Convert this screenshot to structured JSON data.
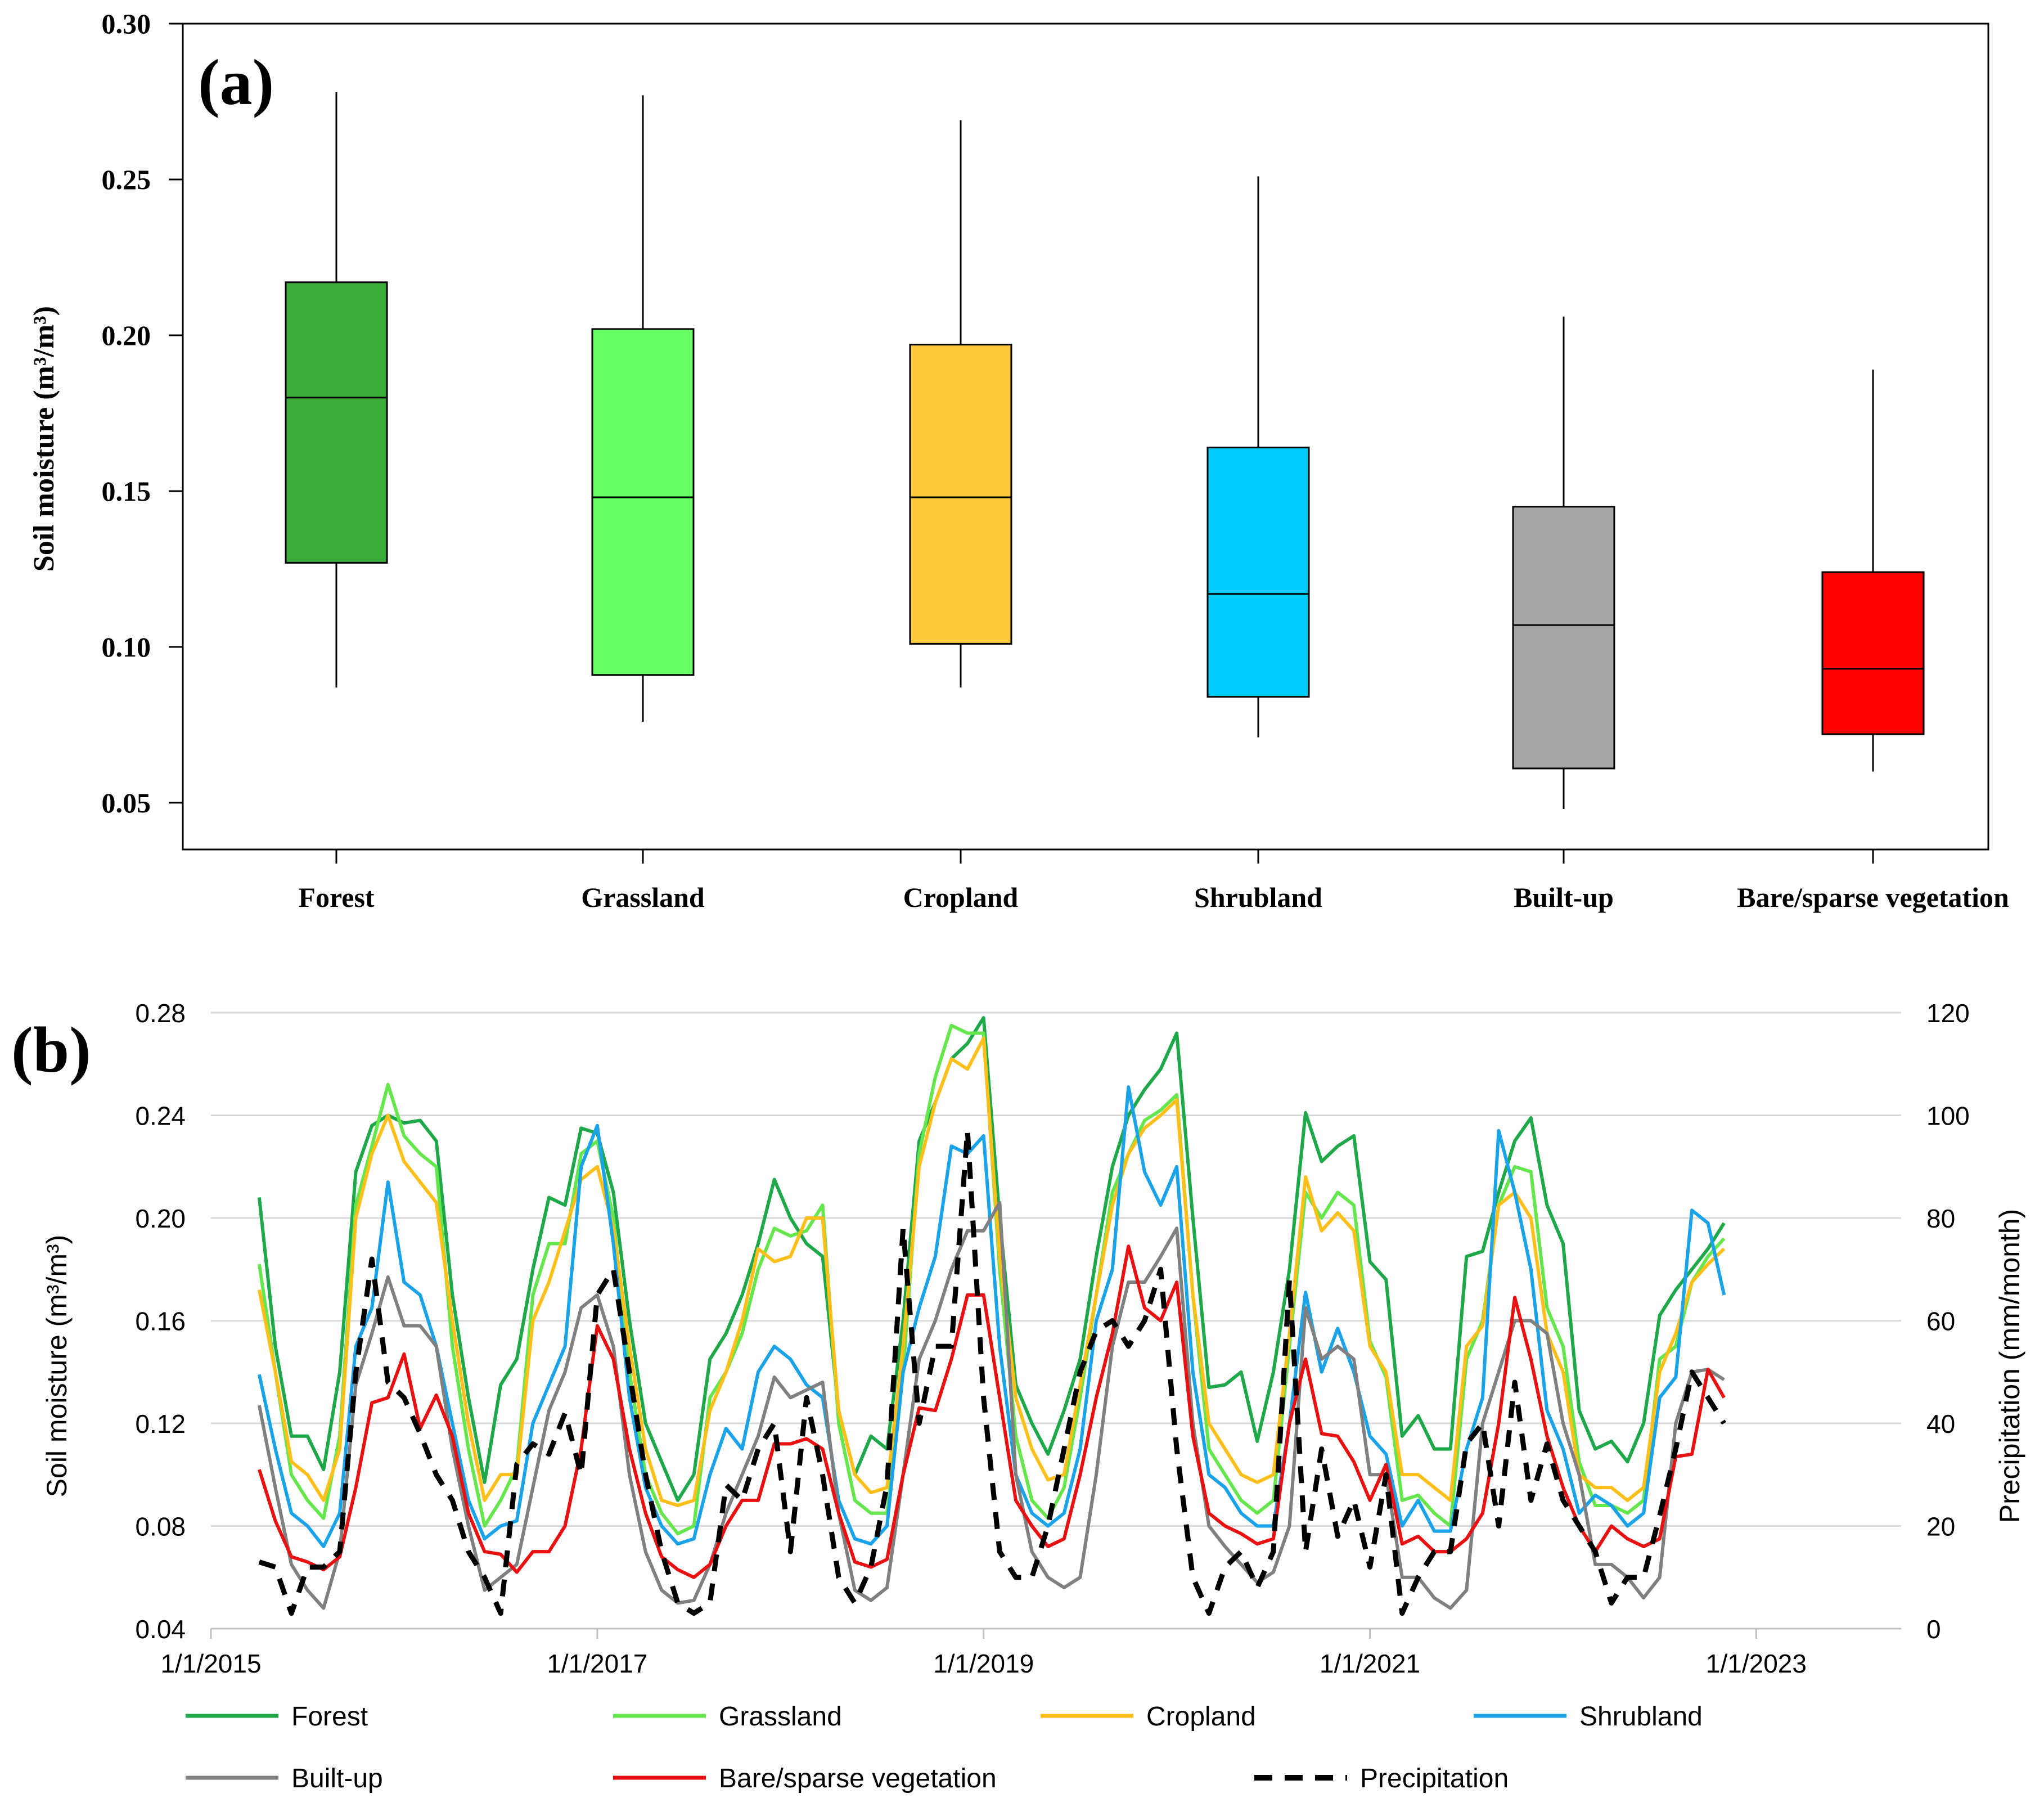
{
  "panel_a": {
    "label": "(a)",
    "chart_data": {
      "type": "box",
      "title": "",
      "ylabel": "Soil moisture (m³/m³)",
      "ylim": [
        0.035,
        0.3
      ],
      "yticks": [
        0.05,
        0.1,
        0.15,
        0.2,
        0.25,
        0.3
      ],
      "ytick_labels": [
        "0.05",
        "0.10",
        "0.15",
        "0.20",
        "0.25",
        "0.30"
      ],
      "categories": [
        "Forest",
        "Grassland",
        "Cropland",
        "Shrubland",
        "Built-up",
        "Bare/sparse vegetation"
      ],
      "boxes": [
        {
          "name": "Forest",
          "min": 0.087,
          "q1": 0.127,
          "median": 0.18,
          "q3": 0.217,
          "max": 0.278,
          "color": "#3aad3a"
        },
        {
          "name": "Grassland",
          "min": 0.076,
          "q1": 0.091,
          "median": 0.148,
          "q3": 0.202,
          "max": 0.277,
          "color": "#66ff66"
        },
        {
          "name": "Cropland",
          "min": 0.087,
          "q1": 0.101,
          "median": 0.148,
          "q3": 0.197,
          "max": 0.269,
          "color": "#ffc83d"
        },
        {
          "name": "Shrubland",
          "min": 0.071,
          "q1": 0.084,
          "median": 0.117,
          "q3": 0.164,
          "max": 0.251,
          "color": "#00ccff"
        },
        {
          "name": "Built-up",
          "min": 0.048,
          "q1": 0.061,
          "median": 0.107,
          "q3": 0.145,
          "max": 0.206,
          "color": "#a6a6a6"
        },
        {
          "name": "Bare/sparse vegetation",
          "min": 0.06,
          "q1": 0.072,
          "median": 0.093,
          "q3": 0.124,
          "max": 0.189,
          "color": "#ff0000"
        }
      ]
    }
  },
  "panel_b": {
    "label": "(b)",
    "chart_data": {
      "type": "line",
      "ylabel_left": "Soil moisture (m³/m³)",
      "ylabel_right": "Precipitation (mm/month)",
      "ylim_left": [
        0.04,
        0.28
      ],
      "ylim_right": [
        0,
        120
      ],
      "yticks_left": [
        "0.04",
        "0.08",
        "0.12",
        "0.16",
        "0.20",
        "0.24",
        "0.28"
      ],
      "yticks_right": [
        "0",
        "20",
        "40",
        "60",
        "80",
        "100",
        "120"
      ],
      "x_start": "2015-01",
      "x_range_years": [
        2015,
        2023.75
      ],
      "xtick_labels": [
        "1/1/2015",
        "1/1/2017",
        "1/1/2019",
        "1/1/2021",
        "1/1/2023"
      ],
      "series_start": "2015-04",
      "series": [
        {
          "name": "Forest",
          "color": "#1fa84a",
          "axis": "left",
          "values": [
            0.208,
            0.15,
            0.115,
            0.115,
            0.102,
            0.14,
            0.218,
            0.236,
            0.24,
            0.237,
            0.238,
            0.23,
            0.17,
            0.13,
            0.097,
            0.135,
            0.145,
            0.18,
            0.208,
            0.205,
            0.235,
            0.233,
            0.21,
            0.16,
            0.12,
            0.105,
            0.09,
            0.1,
            0.145,
            0.155,
            0.17,
            0.19,
            0.215,
            0.2,
            0.19,
            0.185,
            0.125,
            0.1,
            0.115,
            0.11,
            0.16,
            0.23,
            0.245,
            0.262,
            0.268,
            0.278,
            0.2,
            0.135,
            0.12,
            0.108,
            0.125,
            0.145,
            0.185,
            0.22,
            0.24,
            0.25,
            0.258,
            0.272,
            0.2,
            0.134,
            0.135,
            0.14,
            0.113,
            0.14,
            0.18,
            0.241,
            0.222,
            0.228,
            0.232,
            0.183,
            0.176,
            0.115,
            0.123,
            0.11,
            0.11,
            0.185,
            0.187,
            0.21,
            0.23,
            0.239,
            0.205,
            0.19,
            0.125,
            0.11,
            0.113,
            0.105,
            0.12,
            0.162,
            0.172,
            0.18,
            0.188,
            0.198
          ]
        },
        {
          "name": "Grassland",
          "color": "#66e64d",
          "axis": "left",
          "values": [
            0.182,
            0.14,
            0.1,
            0.09,
            0.083,
            0.115,
            0.205,
            0.228,
            0.252,
            0.232,
            0.225,
            0.22,
            0.15,
            0.11,
            0.08,
            0.09,
            0.103,
            0.17,
            0.19,
            0.19,
            0.225,
            0.23,
            0.2,
            0.14,
            0.1,
            0.085,
            0.077,
            0.08,
            0.13,
            0.14,
            0.155,
            0.18,
            0.196,
            0.193,
            0.195,
            0.205,
            0.12,
            0.09,
            0.085,
            0.085,
            0.14,
            0.225,
            0.255,
            0.275,
            0.272,
            0.272,
            0.18,
            0.115,
            0.09,
            0.083,
            0.095,
            0.13,
            0.17,
            0.21,
            0.225,
            0.238,
            0.242,
            0.248,
            0.17,
            0.11,
            0.1,
            0.09,
            0.085,
            0.09,
            0.15,
            0.21,
            0.2,
            0.21,
            0.205,
            0.152,
            0.138,
            0.09,
            0.092,
            0.085,
            0.08,
            0.145,
            0.16,
            0.205,
            0.22,
            0.218,
            0.165,
            0.15,
            0.105,
            0.088,
            0.088,
            0.085,
            0.09,
            0.145,
            0.15,
            0.175,
            0.185,
            0.192
          ]
        },
        {
          "name": "Cropland",
          "color": "#ffbf1a",
          "axis": "left",
          "values": [
            0.172,
            0.14,
            0.105,
            0.1,
            0.09,
            0.11,
            0.2,
            0.225,
            0.24,
            0.222,
            0.214,
            0.206,
            0.16,
            0.12,
            0.09,
            0.1,
            0.1,
            0.16,
            0.175,
            0.195,
            0.215,
            0.22,
            0.196,
            0.15,
            0.11,
            0.09,
            0.088,
            0.09,
            0.125,
            0.14,
            0.16,
            0.188,
            0.183,
            0.185,
            0.2,
            0.2,
            0.125,
            0.1,
            0.093,
            0.095,
            0.15,
            0.22,
            0.245,
            0.262,
            0.258,
            0.27,
            0.185,
            0.13,
            0.11,
            0.098,
            0.1,
            0.135,
            0.17,
            0.205,
            0.225,
            0.235,
            0.24,
            0.246,
            0.17,
            0.12,
            0.11,
            0.1,
            0.097,
            0.1,
            0.155,
            0.216,
            0.195,
            0.202,
            0.195,
            0.15,
            0.14,
            0.1,
            0.1,
            0.095,
            0.09,
            0.15,
            0.158,
            0.205,
            0.21,
            0.2,
            0.155,
            0.14,
            0.1,
            0.095,
            0.095,
            0.09,
            0.095,
            0.14,
            0.155,
            0.175,
            0.182,
            0.188
          ]
        },
        {
          "name": "Shrubland",
          "color": "#1aa3e8",
          "axis": "left",
          "values": [
            0.139,
            0.11,
            0.085,
            0.08,
            0.072,
            0.085,
            0.15,
            0.165,
            0.214,
            0.175,
            0.17,
            0.15,
            0.12,
            0.09,
            0.075,
            0.08,
            0.082,
            0.12,
            0.135,
            0.15,
            0.22,
            0.236,
            0.19,
            0.13,
            0.095,
            0.08,
            0.073,
            0.075,
            0.1,
            0.118,
            0.11,
            0.14,
            0.15,
            0.145,
            0.135,
            0.13,
            0.09,
            0.075,
            0.073,
            0.08,
            0.14,
            0.165,
            0.185,
            0.228,
            0.225,
            0.232,
            0.15,
            0.1,
            0.085,
            0.08,
            0.085,
            0.11,
            0.16,
            0.18,
            0.251,
            0.218,
            0.205,
            0.22,
            0.14,
            0.1,
            0.095,
            0.085,
            0.08,
            0.08,
            0.12,
            0.171,
            0.14,
            0.157,
            0.14,
            0.115,
            0.108,
            0.08,
            0.09,
            0.078,
            0.078,
            0.11,
            0.13,
            0.234,
            0.21,
            0.18,
            0.125,
            0.11,
            0.085,
            0.092,
            0.088,
            0.08,
            0.085,
            0.13,
            0.138,
            0.203,
            0.198,
            0.17
          ]
        },
        {
          "name": "Built-up",
          "color": "#808080",
          "axis": "left",
          "values": [
            0.127,
            0.095,
            0.065,
            0.055,
            0.048,
            0.07,
            0.135,
            0.155,
            0.177,
            0.158,
            0.158,
            0.15,
            0.11,
            0.08,
            0.055,
            0.06,
            0.065,
            0.095,
            0.125,
            0.14,
            0.165,
            0.17,
            0.15,
            0.1,
            0.07,
            0.055,
            0.05,
            0.051,
            0.065,
            0.085,
            0.1,
            0.115,
            0.138,
            0.13,
            0.133,
            0.136,
            0.085,
            0.055,
            0.051,
            0.056,
            0.1,
            0.145,
            0.16,
            0.18,
            0.195,
            0.195,
            0.206,
            0.1,
            0.07,
            0.06,
            0.056,
            0.06,
            0.1,
            0.15,
            0.175,
            0.175,
            0.185,
            0.196,
            0.12,
            0.08,
            0.072,
            0.065,
            0.058,
            0.062,
            0.08,
            0.165,
            0.145,
            0.15,
            0.145,
            0.1,
            0.1,
            0.06,
            0.06,
            0.052,
            0.048,
            0.055,
            0.12,
            0.14,
            0.16,
            0.16,
            0.155,
            0.12,
            0.1,
            0.065,
            0.065,
            0.06,
            0.052,
            0.06,
            0.12,
            0.14,
            0.141,
            0.137
          ]
        },
        {
          "name": "Bare/sparse vegetation",
          "color": "#e81010",
          "axis": "left",
          "values": [
            0.102,
            0.082,
            0.068,
            0.066,
            0.063,
            0.068,
            0.095,
            0.128,
            0.13,
            0.147,
            0.118,
            0.131,
            0.115,
            0.085,
            0.07,
            0.069,
            0.062,
            0.07,
            0.07,
            0.08,
            0.11,
            0.158,
            0.145,
            0.11,
            0.085,
            0.068,
            0.063,
            0.06,
            0.065,
            0.08,
            0.09,
            0.09,
            0.112,
            0.112,
            0.114,
            0.11,
            0.085,
            0.066,
            0.064,
            0.067,
            0.1,
            0.126,
            0.125,
            0.145,
            0.17,
            0.17,
            0.13,
            0.09,
            0.08,
            0.072,
            0.075,
            0.1,
            0.13,
            0.155,
            0.189,
            0.165,
            0.16,
            0.175,
            0.115,
            0.085,
            0.08,
            0.077,
            0.073,
            0.075,
            0.12,
            0.145,
            0.116,
            0.115,
            0.105,
            0.09,
            0.104,
            0.073,
            0.076,
            0.07,
            0.07,
            0.075,
            0.085,
            0.12,
            0.169,
            0.145,
            0.115,
            0.095,
            0.08,
            0.07,
            0.08,
            0.075,
            0.072,
            0.075,
            0.107,
            0.108,
            0.141,
            0.13
          ]
        },
        {
          "name": "Precipitation",
          "color": "#000000",
          "axis": "right",
          "dashed": true,
          "values": [
            13,
            12,
            3,
            12,
            12,
            15,
            50,
            72,
            48,
            45,
            38,
            30,
            25,
            15,
            10,
            3,
            32,
            36,
            34,
            42,
            30,
            65,
            70,
            50,
            30,
            15,
            5,
            3,
            5,
            28,
            25,
            35,
            40,
            15,
            45,
            30,
            10,
            5,
            12,
            28,
            78,
            40,
            55,
            55,
            97,
            45,
            15,
            10,
            10,
            20,
            35,
            50,
            58,
            60,
            55,
            60,
            70,
            35,
            10,
            3,
            12,
            15,
            8,
            15,
            68,
            15,
            35,
            18,
            25,
            12,
            30,
            3,
            10,
            15,
            15,
            36,
            40,
            20,
            48,
            25,
            36,
            25,
            20,
            15,
            5,
            10,
            10,
            22,
            35,
            50,
            45,
            40
          ]
        }
      ],
      "legend": [
        "Forest",
        "Grassland",
        "Cropland",
        "Shrubland",
        "Built-up",
        "Bare/sparse vegetation",
        "Precipitation"
      ]
    }
  }
}
